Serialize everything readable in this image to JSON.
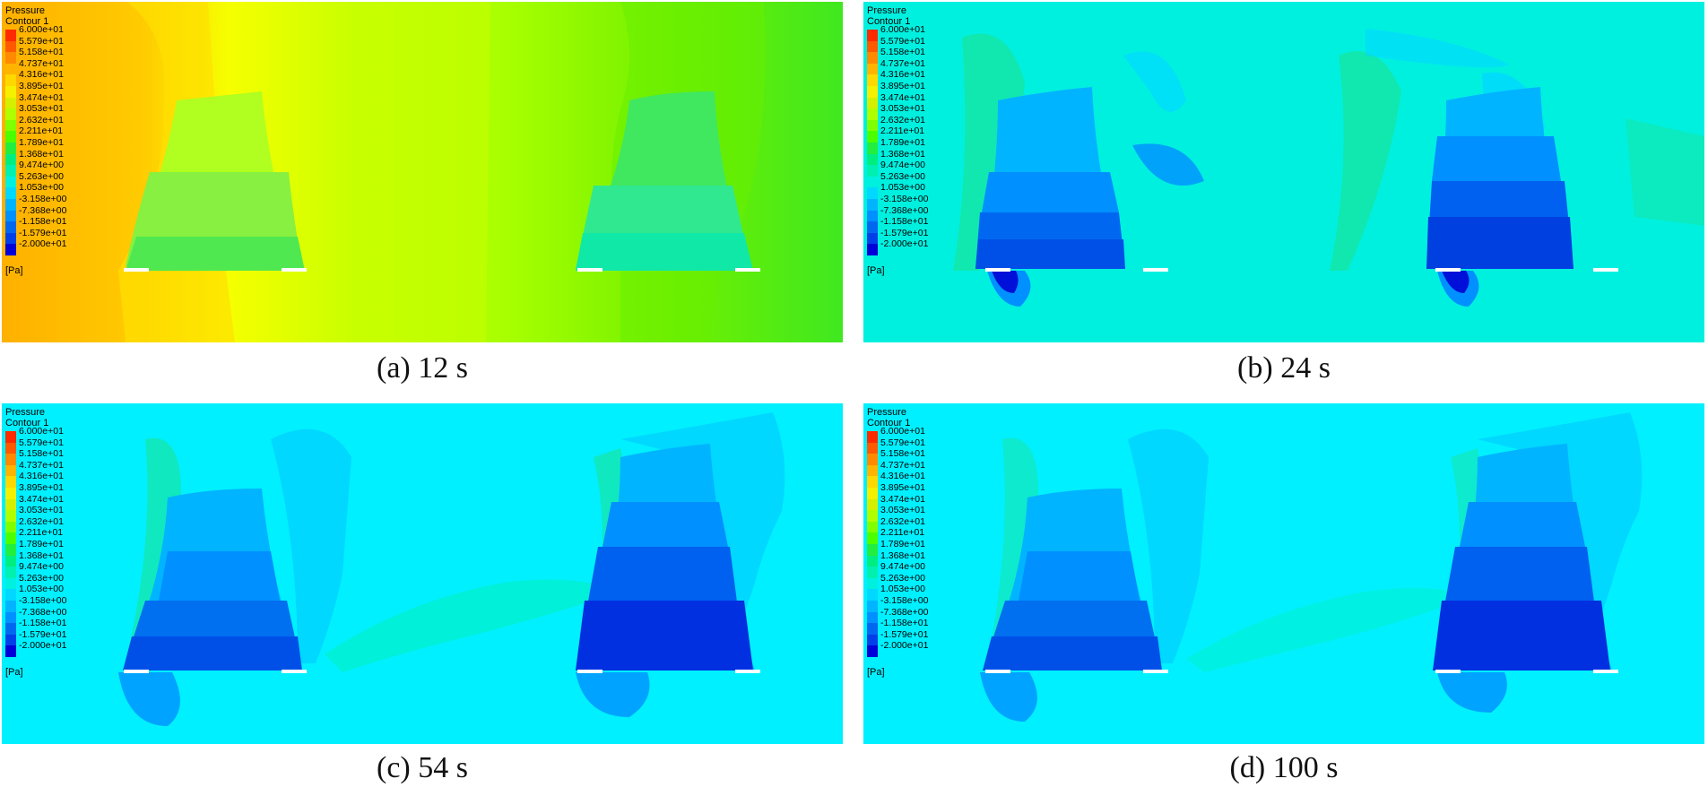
{
  "legend": {
    "title_line1": "Pressure",
    "title_line2": "Contour 1",
    "unit": "[Pa]",
    "ticks": [
      "6.000e+01",
      "5.579e+01",
      "5.158e+01",
      "4.737e+01",
      "4.316e+01",
      "3.895e+01",
      "3.474e+01",
      "3.053e+01",
      "2.632e+01",
      "2.211e+01",
      "1.789e+01",
      "1.368e+01",
      "9.474e+00",
      "5.263e+00",
      "1.053e+00",
      "-3.158e+00",
      "-7.368e+00",
      "-1.158e+01",
      "-1.579e+01",
      "-2.000e+01"
    ],
    "colors": [
      "#ff2a00",
      "#ff5a00",
      "#ff8a00",
      "#ffb400",
      "#ffd800",
      "#f5f000",
      "#d4f000",
      "#b0ff00",
      "#80ff00",
      "#4cff00",
      "#22ee40",
      "#00ee80",
      "#00f0b0",
      "#00f0e0",
      "#00d8ff",
      "#00b4ff",
      "#0090ff",
      "#0068f0",
      "#0040e8",
      "#0000d8"
    ]
  },
  "panels": [
    {
      "id": "a",
      "caption": "(a) 12 s"
    },
    {
      "id": "b",
      "caption": "(b) 24 s"
    },
    {
      "id": "c",
      "caption": "(c) 54 s"
    },
    {
      "id": "d",
      "caption": "(d) 100 s"
    }
  ],
  "colors": {
    "field_a_gradient": [
      "#ffb000",
      "#f0ff00",
      "#b8ff00",
      "#50f020"
    ],
    "field_steady": "#00f0ff",
    "low_pressure": "#0050f0",
    "lowest_pressure": "#0010e0"
  }
}
